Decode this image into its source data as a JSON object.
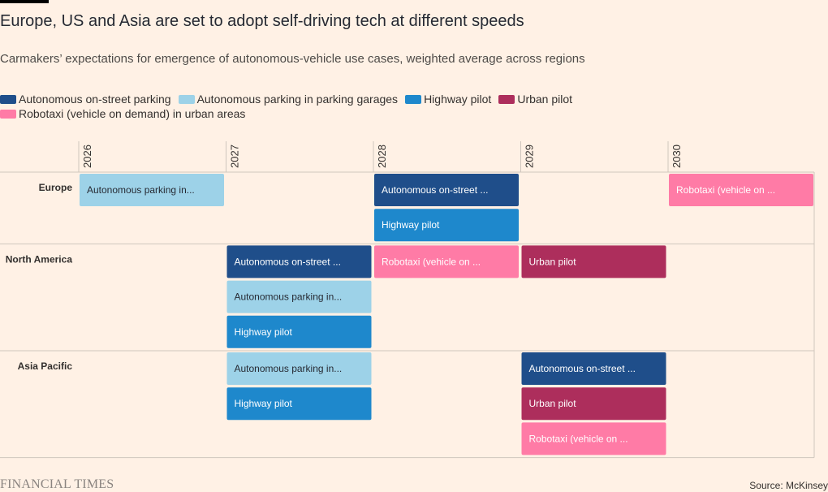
{
  "title": "Europe, US and Asia are set to adopt self-driving tech at different speeds",
  "subtitle": "Carmakers’ expectations for emergence of autonomous-vehicle use cases, weighted average across regions",
  "source": "Source: McKinsey",
  "brand": "FINANCIAL TIMES",
  "chart_data": {
    "type": "timeline",
    "x": [
      "2026",
      "2027",
      "2028",
      "2029",
      "2030"
    ],
    "legend": [
      {
        "key": "onstreet",
        "label": "Autonomous on-street parking",
        "color": "#1f4e8a"
      },
      {
        "key": "garage",
        "label": "Autonomous parking in parking garages",
        "color": "#9dd2e8"
      },
      {
        "key": "highway",
        "label": "Highway pilot",
        "color": "#1e88cc"
      },
      {
        "key": "urban",
        "label": "Urban pilot",
        "color": "#ad2e5c"
      },
      {
        "key": "robotaxi",
        "label": "Robotaxi (vehicle on demand) in urban areas",
        "color": "#ff7ba6"
      }
    ],
    "regions": [
      {
        "name": "Europe",
        "items": [
          {
            "key": "garage",
            "year": "2026",
            "label": "Autonomous parking in..."
          },
          {
            "key": "onstreet",
            "year": "2028",
            "label": "Autonomous on-street ..."
          },
          {
            "key": "highway",
            "year": "2028",
            "label": "Highway pilot"
          },
          {
            "key": "robotaxi",
            "year": "2030",
            "label": "Robotaxi (vehicle on ..."
          }
        ]
      },
      {
        "name": "North America",
        "items": [
          {
            "key": "onstreet",
            "year": "2027",
            "label": "Autonomous on-street ..."
          },
          {
            "key": "garage",
            "year": "2027",
            "label": "Autonomous parking in..."
          },
          {
            "key": "highway",
            "year": "2027",
            "label": "Highway pilot"
          },
          {
            "key": "robotaxi",
            "year": "2028",
            "label": "Robotaxi (vehicle on ..."
          },
          {
            "key": "urban",
            "year": "2029",
            "label": "Urban pilot"
          }
        ]
      },
      {
        "name": "Asia Pacific",
        "items": [
          {
            "key": "garage",
            "year": "2027",
            "label": "Autonomous parking in..."
          },
          {
            "key": "highway",
            "year": "2027",
            "label": "Highway pilot"
          },
          {
            "key": "onstreet",
            "year": "2029",
            "label": "Autonomous on-street ..."
          },
          {
            "key": "urban",
            "year": "2029",
            "label": "Urban pilot"
          },
          {
            "key": "robotaxi",
            "year": "2029",
            "label": "Robotaxi (vehicle on ..."
          }
        ]
      }
    ]
  }
}
